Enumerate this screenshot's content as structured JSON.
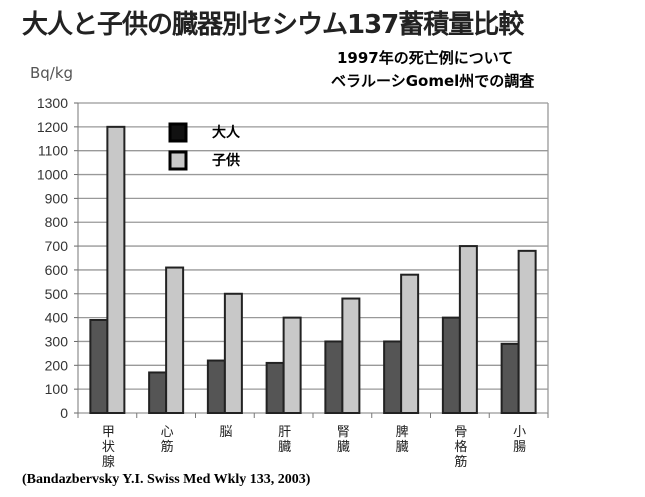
{
  "chart_data": {
    "type": "bar",
    "title": "大人と子供の臓器別セシウム137蓄積量比較",
    "subtitle": [
      "1997年の死亡例について",
      "ベラルーシGomel州での調査"
    ],
    "ylabel": "Bq/kg",
    "xlabel": "",
    "ylim": [
      0,
      1300
    ],
    "yticks": [
      0,
      100,
      200,
      300,
      400,
      500,
      600,
      700,
      800,
      900,
      1000,
      1100,
      1200,
      1300
    ],
    "categories": [
      "甲状腺",
      "心筋",
      "脳",
      "肝臓",
      "腎臓",
      "脾臓",
      "骨格筋",
      "小腸"
    ],
    "series": [
      {
        "name": "大人",
        "color": "#555555",
        "values": [
          390,
          170,
          220,
          210,
          300,
          300,
          400,
          290
        ]
      },
      {
        "name": "子供",
        "color": "#c8c8c8",
        "values": [
          1200,
          610,
          500,
          400,
          480,
          580,
          700,
          680
        ]
      }
    ],
    "grid": true,
    "legend": "top-left"
  },
  "citation": "(Bandazbervsky Y.I. Swiss Med Wkly 133, 2003)"
}
